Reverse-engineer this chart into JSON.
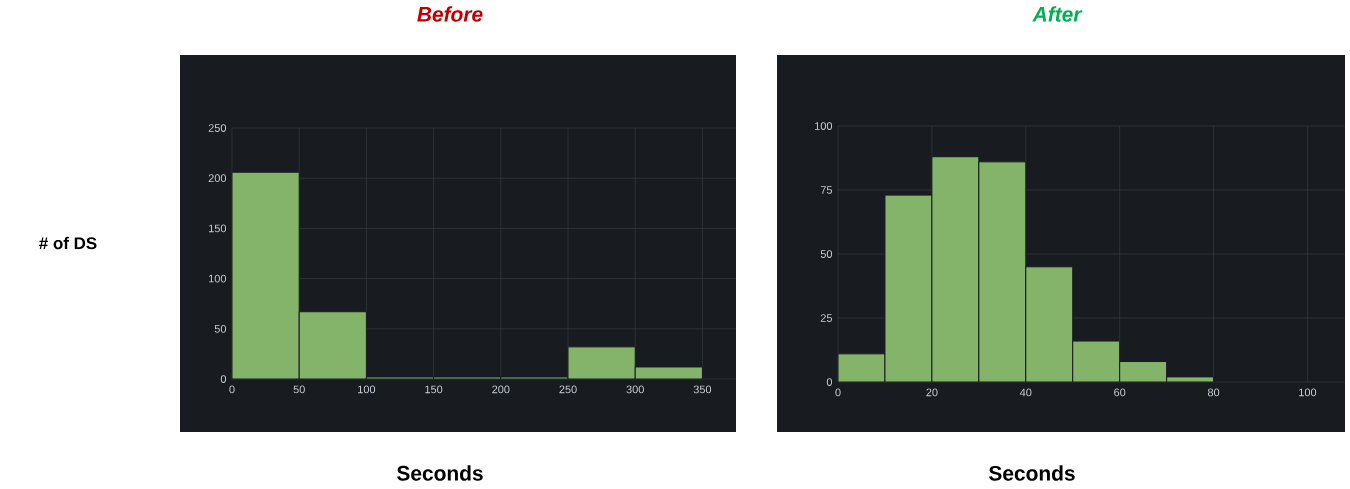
{
  "chart_data": [
    {
      "type": "histogram",
      "title": "Before",
      "xlabel": "Seconds",
      "ylabel": "# of DS",
      "bins": [
        0,
        50,
        100,
        150,
        200,
        250,
        300,
        350
      ],
      "values": [
        206,
        67,
        2,
        2,
        2,
        32,
        12
      ],
      "color": "#84b36a",
      "xlim": [
        0,
        375
      ],
      "ylim": [
        0,
        250
      ],
      "xticks": [
        0,
        50,
        100,
        150,
        200,
        250,
        300,
        350
      ],
      "yticks": [
        0,
        50,
        100,
        150,
        200,
        250
      ],
      "grid": true
    },
    {
      "type": "histogram",
      "title": "After",
      "xlabel": "Seconds",
      "bins": [
        0,
        10,
        20,
        30,
        40,
        50,
        60,
        70,
        80
      ],
      "values": [
        11,
        73,
        88,
        86,
        45,
        16,
        8,
        2
      ],
      "color": "#84b36a",
      "xlim": [
        0,
        108
      ],
      "ylim": [
        0,
        100
      ],
      "xticks": [
        0,
        20,
        40,
        60,
        80,
        100
      ],
      "yticks": [
        0,
        25,
        50,
        75,
        100
      ],
      "grid": true
    }
  ]
}
